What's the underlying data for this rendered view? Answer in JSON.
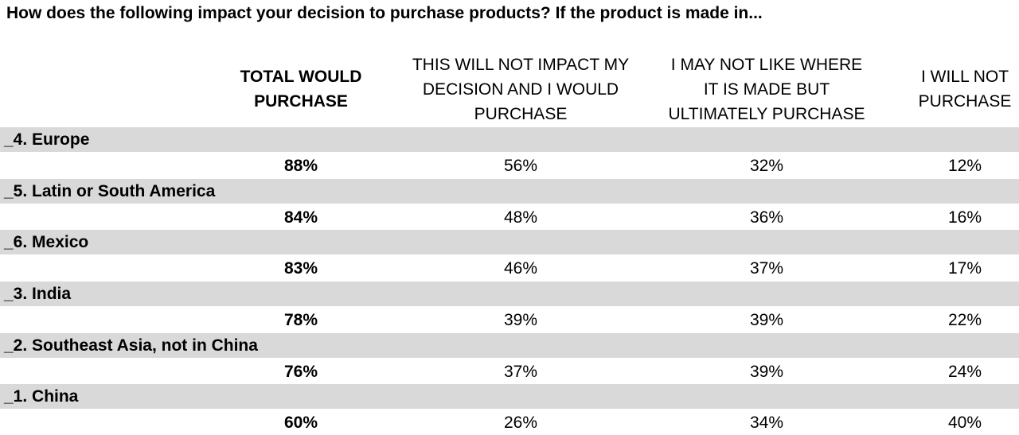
{
  "title": "How does the following impact your decision to purchase products?  If the product is made in...",
  "columns": {
    "total": [
      "TOTAL WOULD",
      "PURCHASE"
    ],
    "no_impact": [
      "THIS WILL NOT IMPACT MY",
      "DECISION AND I WOULD",
      "PURCHASE"
    ],
    "may_not_like": [
      "I MAY NOT LIKE WHERE",
      "IT IS MADE BUT",
      "ULTIMATELY PURCHASE"
    ],
    "will_not": [
      "I WILL NOT",
      "PURCHASE"
    ]
  },
  "rows": [
    {
      "label": "_4. Europe",
      "total": "88%",
      "no_impact": "56%",
      "may_not_like": "32%",
      "will_not": "12%"
    },
    {
      "label": "_5. Latin or South America",
      "total": "84%",
      "no_impact": "48%",
      "may_not_like": "36%",
      "will_not": "16%"
    },
    {
      "label": "_6. Mexico",
      "total": "83%",
      "no_impact": "46%",
      "may_not_like": "37%",
      "will_not": "17%"
    },
    {
      "label": "_3. India",
      "total": "78%",
      "no_impact": "39%",
      "may_not_like": "39%",
      "will_not": "22%"
    },
    {
      "label": "_2. Southeast Asia, not in China",
      "total": "76%",
      "no_impact": "37%",
      "may_not_like": "39%",
      "will_not": "24%"
    },
    {
      "label": "_1. China",
      "total": "60%",
      "no_impact": "26%",
      "may_not_like": "34%",
      "will_not": "40%"
    }
  ],
  "chart_data": {
    "type": "table",
    "title": "How does the following impact your decision to purchase products?  If the product is made in...",
    "columns": [
      "TOTAL WOULD PURCHASE",
      "THIS WILL NOT IMPACT MY DECISION AND I WOULD PURCHASE",
      "I MAY NOT LIKE WHERE IT IS MADE BUT ULTIMATELY PURCHASE",
      "I WILL NOT PURCHASE"
    ],
    "categories": [
      "_4. Europe",
      "_5. Latin or South America",
      "_6. Mexico",
      "_3. India",
      "_2. Southeast Asia, not in China",
      "_1. China"
    ],
    "series": [
      {
        "name": "TOTAL WOULD PURCHASE",
        "values": [
          88,
          84,
          83,
          78,
          76,
          60
        ]
      },
      {
        "name": "THIS WILL NOT IMPACT MY DECISION AND I WOULD PURCHASE",
        "values": [
          56,
          48,
          46,
          39,
          37,
          26
        ]
      },
      {
        "name": "I MAY NOT LIKE WHERE IT IS MADE BUT ULTIMATELY PURCHASE",
        "values": [
          32,
          36,
          37,
          39,
          39,
          34
        ]
      },
      {
        "name": "I WILL NOT PURCHASE",
        "values": [
          12,
          16,
          17,
          22,
          24,
          40
        ]
      }
    ],
    "unit": "%",
    "row_band_color": "#d9d9d9"
  }
}
